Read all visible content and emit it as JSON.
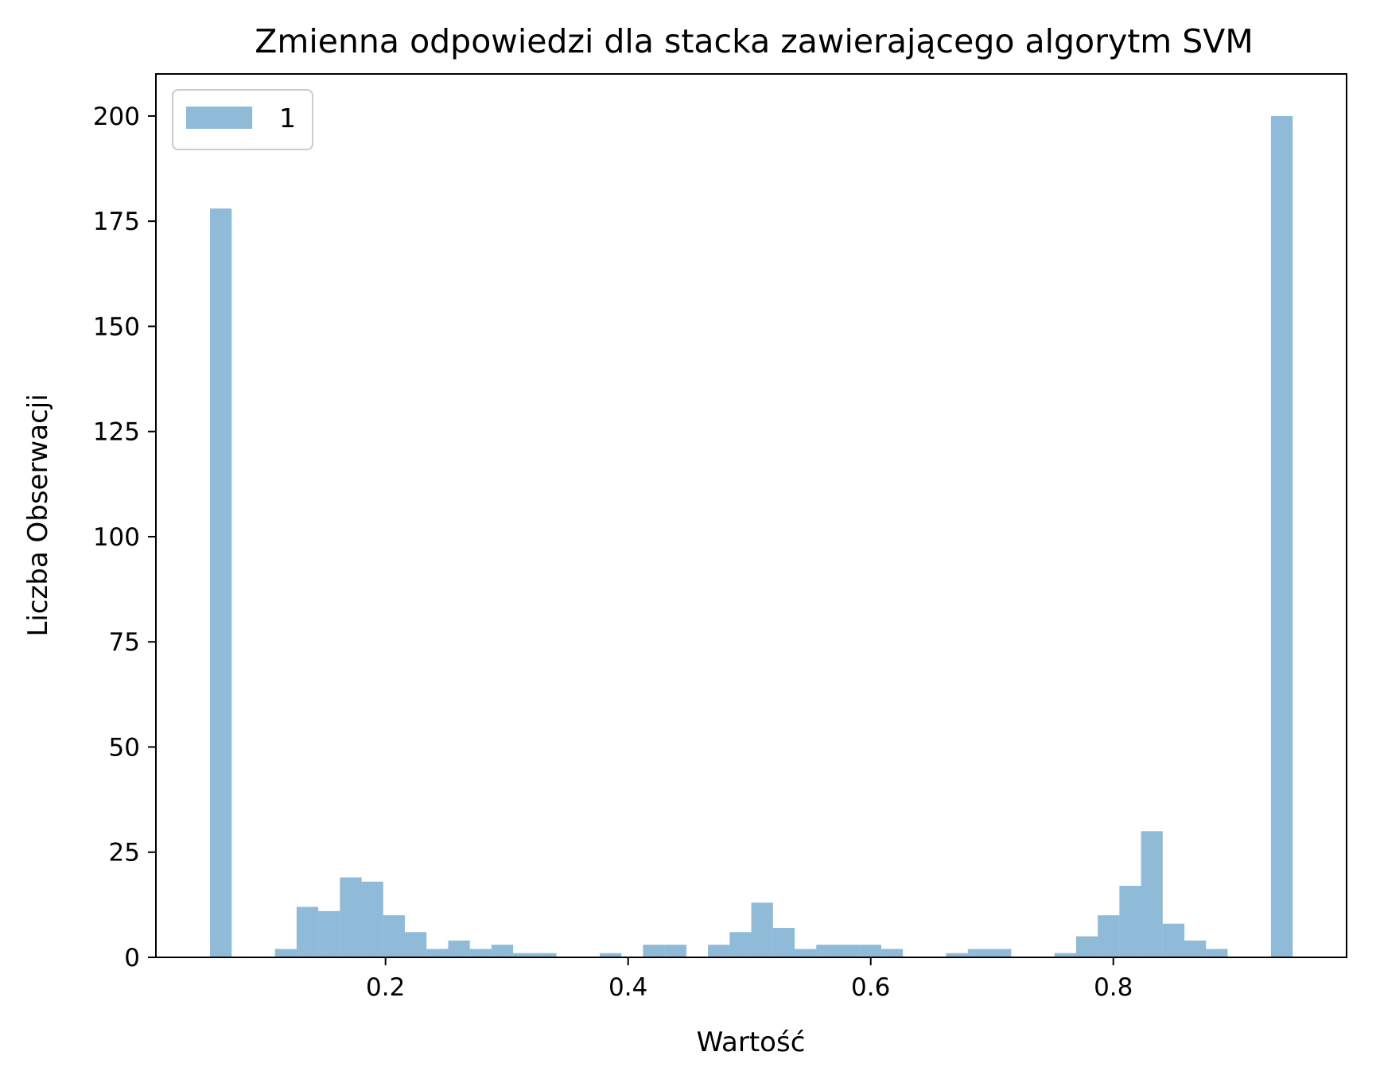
{
  "chart_data": {
    "type": "bar",
    "title": "Zmienna odpowiedzi dla stacka zawierającego algorytm SVM",
    "xlabel": "Wartość",
    "ylabel": "Liczba Obserwacji",
    "xlim": [
      0.0107,
      0.9923
    ],
    "ylim": [
      0,
      210
    ],
    "xticks": [
      0.2,
      0.4,
      0.6,
      0.8
    ],
    "xtick_labels": [
      "0.2",
      "0.4",
      "0.6",
      "0.8"
    ],
    "yticks": [
      0,
      25,
      50,
      75,
      100,
      125,
      150,
      175,
      200
    ],
    "ytick_labels": [
      "0",
      "25",
      "50",
      "75",
      "100",
      "125",
      "150",
      "175",
      "200"
    ],
    "grid": false,
    "legend_position": "upper left",
    "bin_start": 0.0553,
    "bin_width": 0.01785,
    "series": [
      {
        "name": "1",
        "color": "#1f77b4",
        "opacity": 0.5,
        "values": [
          178,
          0,
          0,
          2,
          12,
          11,
          19,
          18,
          10,
          6,
          2,
          4,
          2,
          3,
          1,
          1,
          0,
          0,
          1,
          0,
          3,
          3,
          0,
          3,
          6,
          13,
          7,
          2,
          3,
          3,
          3,
          2,
          0,
          0,
          1,
          2,
          2,
          0,
          0,
          1,
          5,
          10,
          17,
          30,
          8,
          4,
          2,
          0,
          0,
          200
        ]
      }
    ]
  }
}
